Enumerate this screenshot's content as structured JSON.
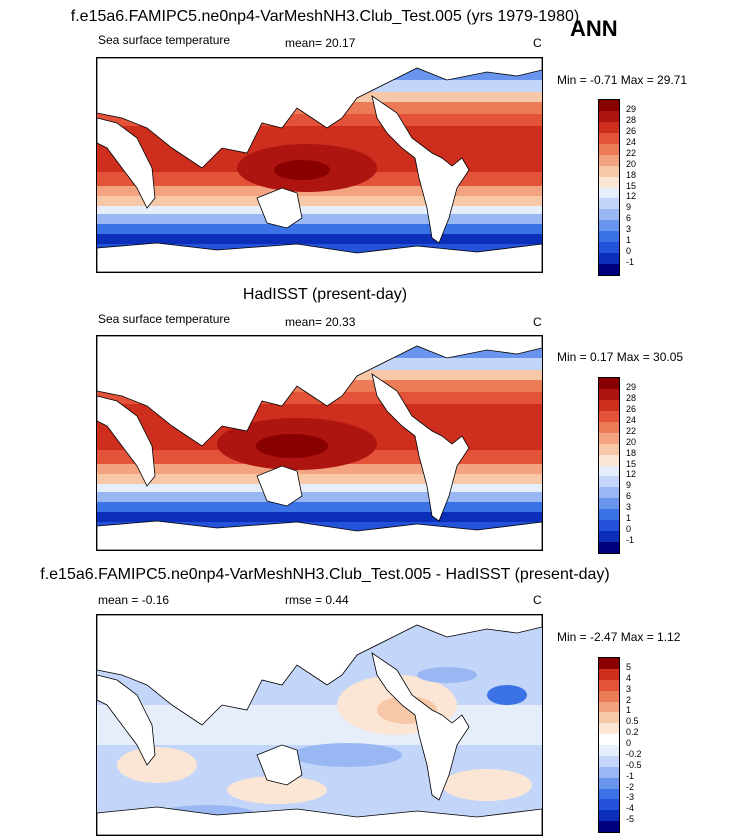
{
  "season": "ANN",
  "colors": {
    "sst_scale": [
      "#00007f",
      "#0b2fb8",
      "#2452d8",
      "#3b73e6",
      "#6a95ee",
      "#99b8f3",
      "#c3d5f8",
      "#e6eefb",
      "#fbe6d6",
      "#f7c8a8",
      "#f3a37f",
      "#ec7b57",
      "#e2533a",
      "#cd2e1d",
      "#ae1511",
      "#880000"
    ],
    "diff_scale": [
      "#00007f",
      "#0b2fb8",
      "#2452d8",
      "#3b73e6",
      "#6a95ee",
      "#99b8f3",
      "#c3d5f8",
      "#e6eefb",
      "#ffffff",
      "#fbe6d6",
      "#f7c8a8",
      "#f3a37f",
      "#ec7b57",
      "#e2533a",
      "#cd2e1d",
      "#880000"
    ]
  },
  "panels": [
    {
      "title": "f.e15a6.FAMIPC5.ne0np4-VarMeshNH3.Club_Test.005 (yrs 1979-1980)",
      "left_label": "Sea surface temperature",
      "center_label": "mean=  20.17",
      "units": "C",
      "minmax": "Min =  -0.71 Max =  29.71",
      "colorbar_labels": [
        "29",
        "28",
        "26",
        "24",
        "22",
        "20",
        "18",
        "15",
        "12",
        "9",
        "6",
        "3",
        "1",
        "0",
        "-1"
      ]
    },
    {
      "title": "HadISST (present-day)",
      "left_label": "Sea surface temperature",
      "center_label": "mean=  20.33",
      "units": "C",
      "minmax": "Min =   0.17 Max =  30.05",
      "colorbar_labels": [
        "29",
        "28",
        "26",
        "24",
        "22",
        "20",
        "18",
        "15",
        "12",
        "9",
        "6",
        "3",
        "1",
        "0",
        "-1"
      ]
    },
    {
      "title": "f.e15a6.FAMIPC5.ne0np4-VarMeshNH3.Club_Test.005 - HadISST (present-day)",
      "left_label": "mean =  -0.16",
      "center_label": "rmse =    0.44",
      "units": "C",
      "minmax": "Min =  -2.47 Max =   1.12",
      "colorbar_labels": [
        "5",
        "4",
        "3",
        "2",
        "1",
        "0.5",
        "0.2",
        "0",
        "-0.2",
        "-0.5",
        "-1",
        "-2",
        "-3",
        "-4",
        "-5"
      ]
    }
  ]
}
